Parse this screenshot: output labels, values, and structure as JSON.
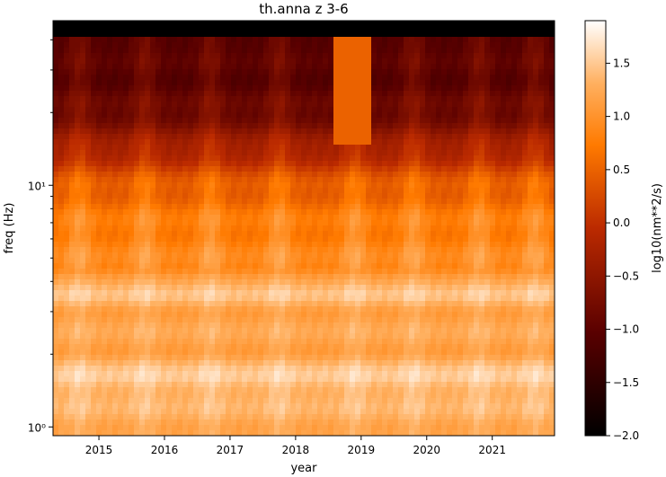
{
  "chart_data": {
    "type": "heatmap",
    "title": "th.anna z 3-6",
    "xlabel": "year",
    "ylabel": "freq (Hz)",
    "x_range": [
      2014.3,
      2021.95
    ],
    "x_ticks": [
      2015,
      2016,
      2017,
      2018,
      2019,
      2020,
      2021
    ],
    "x_tick_labels": [
      "2015",
      "2016",
      "2017",
      "2018",
      "2019",
      "2020",
      "2021"
    ],
    "y_scale": "log",
    "y_range": [
      0.92,
      48
    ],
    "y_ticks": [
      1,
      10
    ],
    "y_tick_labels": [
      "10⁰",
      "10¹"
    ],
    "colormap": "gist_heat",
    "colorbar": {
      "label": "log10(nm**2/s)",
      "range": [
        -2.0,
        1.9
      ],
      "ticks": [
        1.5,
        1.0,
        0.5,
        0.0,
        -0.5,
        -1.0,
        -1.5,
        -2.0
      ],
      "tick_labels": [
        "1.5",
        "1.0",
        "0.5",
        "0.0",
        "−0.5",
        "−1.0",
        "−1.5",
        "−2.0"
      ]
    },
    "frequency_profile": [
      {
        "freq": 0.92,
        "value": 1.2
      },
      {
        "freq": 1.0,
        "value": 1.22
      },
      {
        "freq": 1.3,
        "value": 1.3
      },
      {
        "freq": 1.6,
        "value": 1.5
      },
      {
        "freq": 2.0,
        "value": 1.15
      },
      {
        "freq": 3.0,
        "value": 1.15
      },
      {
        "freq": 3.5,
        "value": 1.4
      },
      {
        "freq": 4.2,
        "value": 1.15
      },
      {
        "freq": 4.6,
        "value": 0.85
      },
      {
        "freq": 7.0,
        "value": 0.7
      },
      {
        "freq": 10.0,
        "value": 0.4
      },
      {
        "freq": 15.0,
        "value": -0.4
      },
      {
        "freq": 20.0,
        "value": -0.9
      },
      {
        "freq": 30.0,
        "value": -1.1
      },
      {
        "freq": 40.0,
        "value": -1.0
      },
      {
        "freq": 42.0,
        "value": -2.0
      },
      {
        "freq": 48.0,
        "value": -2.0
      }
    ],
    "seasonal_peaks_year": [
      2014.7,
      2015.7,
      2016.7,
      2017.75,
      2018.9,
      2019.8,
      2020.8,
      2021.65
    ],
    "anomaly": {
      "years": [
        2018.6,
        2019.15
      ],
      "freq": [
        15,
        42
      ],
      "value": 0.5
    }
  }
}
